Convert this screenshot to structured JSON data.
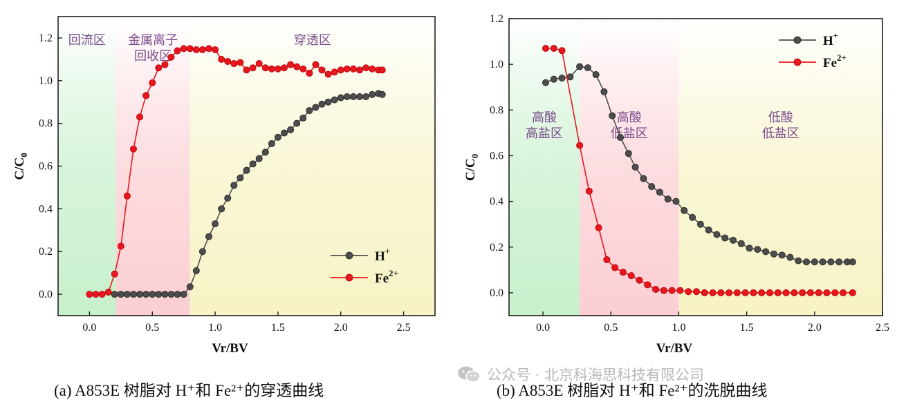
{
  "colors": {
    "h_series": "#4d4d4d",
    "fe_series": "#e8161d",
    "region_text": "#7a4a8c"
  },
  "chart_data": [
    {
      "type": "line",
      "panel": "a",
      "caption": "(a) A853E 树脂对 H⁺和 Fe²⁺的穿透曲线",
      "xlabel": "Vr/BV",
      "ylabel_main": "C/C",
      "ylabel_sub": "0",
      "xlim": [
        -0.25,
        2.75
      ],
      "ylim": [
        -0.1,
        1.3
      ],
      "xticks": [
        "0.0",
        "0.5",
        "1.0",
        "1.5",
        "2.0",
        "2.5"
      ],
      "yticks": [
        "0.0",
        "0.2",
        "0.4",
        "0.6",
        "0.8",
        "1.0",
        "1.2"
      ],
      "legend_position": "lower-right",
      "regions": [
        {
          "x0": -0.25,
          "x1": 0.21,
          "color": "#c8f0cc",
          "label_lines": [
            "回流区"
          ]
        },
        {
          "x0": 0.21,
          "x1": 0.8,
          "color": "#fbcfd3",
          "label_lines": [
            "金属离子",
            "回收区"
          ]
        },
        {
          "x0": 0.8,
          "x1": 2.75,
          "color": "#f7f3c6",
          "label_lines": [
            "穿透区"
          ]
        }
      ],
      "series": [
        {
          "name": "H",
          "sup": "+",
          "color": "#4d4d4d",
          "x": [
            0.2,
            0.25,
            0.3,
            0.35,
            0.4,
            0.45,
            0.5,
            0.55,
            0.6,
            0.65,
            0.7,
            0.75,
            0.8,
            0.85,
            0.9,
            0.95,
            1.0,
            1.05,
            1.1,
            1.15,
            1.2,
            1.25,
            1.3,
            1.35,
            1.4,
            1.45,
            1.5,
            1.55,
            1.6,
            1.65,
            1.7,
            1.75,
            1.8,
            1.85,
            1.9,
            1.95,
            2.0,
            2.05,
            2.1,
            2.15,
            2.2,
            2.25,
            2.3,
            2.33
          ],
          "y": [
            0.0,
            0.0,
            0.0,
            0.0,
            0.0,
            0.0,
            0.0,
            0.0,
            0.0,
            0.0,
            0.0,
            0.0,
            0.035,
            0.11,
            0.2,
            0.27,
            0.33,
            0.4,
            0.45,
            0.51,
            0.545,
            0.58,
            0.61,
            0.635,
            0.665,
            0.705,
            0.735,
            0.755,
            0.77,
            0.8,
            0.825,
            0.86,
            0.875,
            0.89,
            0.9,
            0.91,
            0.92,
            0.925,
            0.925,
            0.925,
            0.925,
            0.935,
            0.94,
            0.935
          ]
        },
        {
          "name": "Fe",
          "sup": "2+",
          "color": "#e8161d",
          "x": [
            0.0,
            0.05,
            0.1,
            0.15,
            0.2,
            0.25,
            0.3,
            0.35,
            0.4,
            0.45,
            0.5,
            0.55,
            0.6,
            0.65,
            0.7,
            0.75,
            0.8,
            0.85,
            0.9,
            0.95,
            1.0,
            1.05,
            1.1,
            1.15,
            1.2,
            1.25,
            1.3,
            1.35,
            1.4,
            1.45,
            1.5,
            1.55,
            1.6,
            1.65,
            1.7,
            1.75,
            1.8,
            1.85,
            1.9,
            1.95,
            2.0,
            2.05,
            2.1,
            2.15,
            2.2,
            2.25,
            2.3,
            2.33
          ],
          "y": [
            0.0,
            0.0,
            0.0,
            0.01,
            0.095,
            0.225,
            0.46,
            0.68,
            0.83,
            0.93,
            0.99,
            1.06,
            1.075,
            1.11,
            1.14,
            1.15,
            1.15,
            1.145,
            1.145,
            1.15,
            1.145,
            1.1,
            1.09,
            1.08,
            1.085,
            1.05,
            1.06,
            1.08,
            1.06,
            1.055,
            1.055,
            1.06,
            1.075,
            1.065,
            1.055,
            1.035,
            1.075,
            1.05,
            1.03,
            1.04,
            1.05,
            1.055,
            1.055,
            1.05,
            1.06,
            1.055,
            1.05,
            1.05
          ]
        }
      ]
    },
    {
      "type": "line",
      "panel": "b",
      "caption": "(b) A853E 树脂对 H⁺和 Fe²⁺的洗脱曲线",
      "xlabel": "Vr/BV",
      "ylabel_main": "C/C",
      "ylabel_sub": "0",
      "xlim": [
        -0.25,
        2.5
      ],
      "ylim": [
        -0.1,
        1.2
      ],
      "xticks": [
        "0.0",
        "0.5",
        "1.0",
        "1.5",
        "2.0",
        "2.5"
      ],
      "yticks": [
        "0.0",
        "0.2",
        "0.4",
        "0.6",
        "0.8",
        "1.0",
        "1.2"
      ],
      "legend_position": "top-right",
      "regions": [
        {
          "x0": -0.25,
          "x1": 0.27,
          "color": "#c8f0cc",
          "label_lines": [
            "高酸",
            "高盐区"
          ]
        },
        {
          "x0": 0.27,
          "x1": 1.0,
          "color": "#fbcfd3",
          "label_lines": [
            "高酸",
            "低盐区"
          ]
        },
        {
          "x0": 1.0,
          "x1": 2.5,
          "color": "#f7f3c6",
          "label_lines": [
            "低酸",
            "低盐区"
          ]
        }
      ],
      "series": [
        {
          "name": "H",
          "sup": "+",
          "color": "#4d4d4d",
          "x": [
            0.02,
            0.08,
            0.14,
            0.2,
            0.27,
            0.33,
            0.39,
            0.45,
            0.51,
            0.57,
            0.63,
            0.68,
            0.74,
            0.8,
            0.86,
            0.92,
            0.98,
            1.04,
            1.1,
            1.16,
            1.22,
            1.28,
            1.34,
            1.4,
            1.46,
            1.52,
            1.58,
            1.64,
            1.7,
            1.76,
            1.82,
            1.88,
            1.94,
            2.0,
            2.06,
            2.12,
            2.18,
            2.24,
            2.28
          ],
          "y": [
            0.92,
            0.935,
            0.94,
            0.945,
            0.99,
            0.985,
            0.955,
            0.88,
            0.775,
            0.68,
            0.61,
            0.55,
            0.5,
            0.465,
            0.44,
            0.41,
            0.4,
            0.36,
            0.33,
            0.3,
            0.275,
            0.255,
            0.24,
            0.23,
            0.215,
            0.195,
            0.19,
            0.18,
            0.17,
            0.165,
            0.155,
            0.14,
            0.135,
            0.135,
            0.135,
            0.135,
            0.135,
            0.135,
            0.135
          ]
        },
        {
          "name": "Fe",
          "sup": "2+",
          "color": "#e8161d",
          "x": [
            0.02,
            0.08,
            0.14,
            0.27,
            0.34,
            0.41,
            0.47,
            0.53,
            0.59,
            0.65,
            0.71,
            0.77,
            0.83,
            0.89,
            0.95,
            1.01,
            1.07,
            1.13,
            1.19,
            1.25,
            1.31,
            1.37,
            1.43,
            1.49,
            1.55,
            1.61,
            1.67,
            1.73,
            1.79,
            1.85,
            1.91,
            1.97,
            2.03,
            2.09,
            2.15,
            2.21,
            2.28
          ],
          "y": [
            1.07,
            1.07,
            1.06,
            0.645,
            0.445,
            0.285,
            0.145,
            0.11,
            0.09,
            0.075,
            0.055,
            0.035,
            0.015,
            0.01,
            0.01,
            0.01,
            0.005,
            0.005,
            0.0,
            0.0,
            0.0,
            0.0,
            0.0,
            0.0,
            0.0,
            0.0,
            0.0,
            0.0,
            0.0,
            0.0,
            0.0,
            0.0,
            0.0,
            0.0,
            0.0,
            0.0,
            0.0
          ]
        }
      ]
    }
  ],
  "watermark": {
    "text": "公众号 · 北京科海思科技有限公司",
    "icon": "wechat-icon"
  }
}
